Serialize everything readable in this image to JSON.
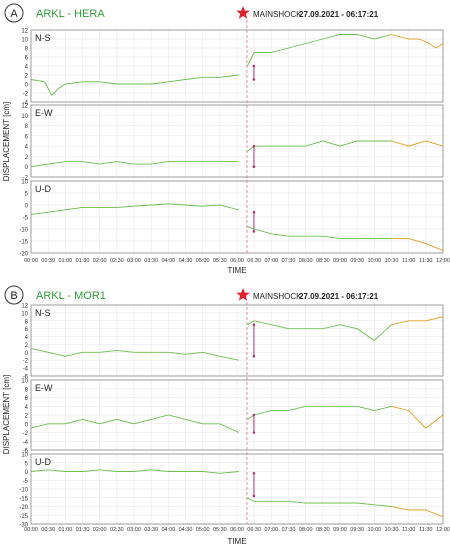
{
  "figure": {
    "mainshock_label": "MAINSHOCK",
    "mainshock_time": "27.09.2021 - 06:17:21",
    "xlabel": "TIME",
    "ylabel": "DISPLACEMENT [cm]",
    "time_ticks": [
      "00:00",
      "00:30",
      "01:00",
      "01:30",
      "02:00",
      "02:30",
      "03:00",
      "03:30",
      "04:00",
      "04:30",
      "05:00",
      "05:30",
      "06:00",
      "06:30",
      "07:00",
      "07:30",
      "08:00",
      "08:30",
      "09:00",
      "09:30",
      "10:00",
      "10:30",
      "11:00",
      "11:30",
      "12:00"
    ]
  },
  "colors": {
    "station": "#2e9e3a",
    "trace": "#6cbf4e",
    "trace_late": "#e0a020",
    "offset_arrow": "#b0307a",
    "mainshock_line": "#e07080",
    "star": "#e0202a"
  },
  "chart_data": [
    {
      "panel": "A",
      "station": "ARKL - HERA",
      "type": "line",
      "subplots": [
        {
          "name": "N-S",
          "ylim": [
            -4,
            12
          ],
          "yticks": [
            -4,
            -2,
            0,
            2,
            4,
            6,
            8,
            10,
            12
          ],
          "series_x": [
            0,
            0.4,
            0.6,
            0.8,
            1,
            1.5,
            2,
            2.5,
            3,
            3.5,
            4,
            4.5,
            5,
            5.5,
            6.05,
            6.3,
            6.5,
            7,
            7.5,
            8,
            8.5,
            9,
            9.5,
            10,
            10.5,
            11,
            11.3,
            11.6,
            11.8,
            12
          ],
          "series_y": [
            1,
            0.5,
            -2.5,
            -1,
            0,
            0.5,
            0.5,
            0,
            0,
            0,
            0.5,
            1,
            1.5,
            1.5,
            2,
            4,
            7,
            7,
            8,
            9,
            10,
            11,
            11,
            10,
            11,
            10,
            10,
            9,
            8,
            9
          ],
          "offset_y": [
            1,
            4
          ]
        },
        {
          "name": "E-W",
          "ylim": [
            -2,
            12
          ],
          "yticks": [
            -2,
            0,
            2,
            4,
            6,
            8,
            10,
            12
          ],
          "series_x": [
            0,
            0.5,
            1,
            1.5,
            2,
            2.5,
            3,
            3.5,
            4,
            4.5,
            5,
            5.5,
            6.05,
            6.3,
            6.5,
            7,
            7.5,
            8,
            8.5,
            9,
            9.5,
            10,
            10.5,
            11,
            11.5,
            12
          ],
          "series_y": [
            0,
            0.5,
            1,
            1,
            0.5,
            1,
            0.5,
            0.5,
            1,
            1,
            1,
            1,
            1,
            3,
            4,
            4,
            4,
            4,
            5,
            4,
            5,
            5,
            5,
            4,
            5,
            4
          ],
          "offset_y": [
            0,
            4
          ]
        },
        {
          "name": "U-D",
          "ylim": [
            -20,
            10
          ],
          "yticks": [
            -20,
            -15,
            -10,
            -5,
            0,
            5,
            10
          ],
          "series_x": [
            0,
            0.5,
            1,
            1.5,
            2,
            2.5,
            3,
            3.5,
            4,
            4.5,
            5,
            5.5,
            6.05,
            6.3,
            6.5,
            7,
            7.5,
            8,
            8.5,
            9,
            9.5,
            10,
            10.5,
            11,
            11.5,
            12
          ],
          "series_y": [
            -4,
            -3,
            -2,
            -1,
            -1,
            -1,
            -0.5,
            0,
            0.5,
            0,
            -0.5,
            0,
            -2,
            -9,
            -10,
            -12,
            -13,
            -13,
            -13,
            -14,
            -14,
            -14,
            -14,
            -14,
            -16,
            -19
          ],
          "offset_y": [
            -3,
            -11
          ]
        }
      ]
    },
    {
      "panel": "B",
      "station": "ARKL - MOR1",
      "type": "line",
      "subplots": [
        {
          "name": "N-S",
          "ylim": [
            -6,
            12
          ],
          "yticks": [
            -6,
            -4,
            -2,
            0,
            2,
            4,
            6,
            8,
            10,
            12
          ],
          "series_x": [
            0,
            0.5,
            1,
            1.5,
            2,
            2.5,
            3,
            3.5,
            4,
            4.5,
            5,
            5.5,
            6.05,
            6.3,
            6.5,
            7,
            7.5,
            8,
            8.5,
            9,
            9.5,
            10,
            10.5,
            11,
            11.5,
            12
          ],
          "series_y": [
            1,
            0,
            -1,
            0,
            0,
            0.5,
            0,
            0,
            0,
            -0.5,
            0,
            -1,
            -2,
            7,
            8,
            7,
            6,
            6,
            6,
            7,
            6,
            3,
            7,
            8,
            8,
            9
          ],
          "offset_y": [
            -1,
            7
          ]
        },
        {
          "name": "E-W",
          "ylim": [
            -6,
            10
          ],
          "yticks": [
            -6,
            -4,
            -2,
            0,
            2,
            4,
            6,
            8,
            10
          ],
          "series_x": [
            0,
            0.5,
            1,
            1.5,
            2,
            2.5,
            3,
            3.5,
            4,
            4.5,
            5,
            5.5,
            6.05,
            6.3,
            6.5,
            7,
            7.5,
            8,
            8.5,
            9,
            9.5,
            10,
            10.5,
            11,
            11.5,
            12
          ],
          "series_y": [
            -1,
            0,
            0,
            1,
            0,
            1,
            0,
            1,
            2,
            1,
            0,
            0,
            -2,
            1,
            2,
            3,
            3,
            4,
            4,
            4,
            4,
            3,
            4,
            3,
            -1,
            2
          ],
          "offset_y": [
            -2,
            2
          ]
        },
        {
          "name": "U-D",
          "ylim": [
            -30,
            10
          ],
          "yticks": [
            -30,
            -25,
            -20,
            -15,
            -10,
            -5,
            0,
            5,
            10
          ],
          "series_x": [
            0,
            0.5,
            1,
            1.5,
            2,
            2.5,
            3,
            3.5,
            4,
            4.5,
            5,
            5.5,
            6.05,
            6.3,
            6.5,
            7,
            7.5,
            8,
            8.5,
            9,
            9.5,
            10,
            10.5,
            11,
            11.5,
            12
          ],
          "series_y": [
            0,
            1,
            0,
            0,
            1,
            0,
            0,
            1,
            0,
            0,
            0,
            -1,
            0,
            -15,
            -17,
            -17,
            -17,
            -18,
            -18,
            -18,
            -18,
            -19,
            -20,
            -22,
            -22,
            -26
          ],
          "offset_y": [
            -1,
            -14
          ]
        }
      ]
    }
  ]
}
